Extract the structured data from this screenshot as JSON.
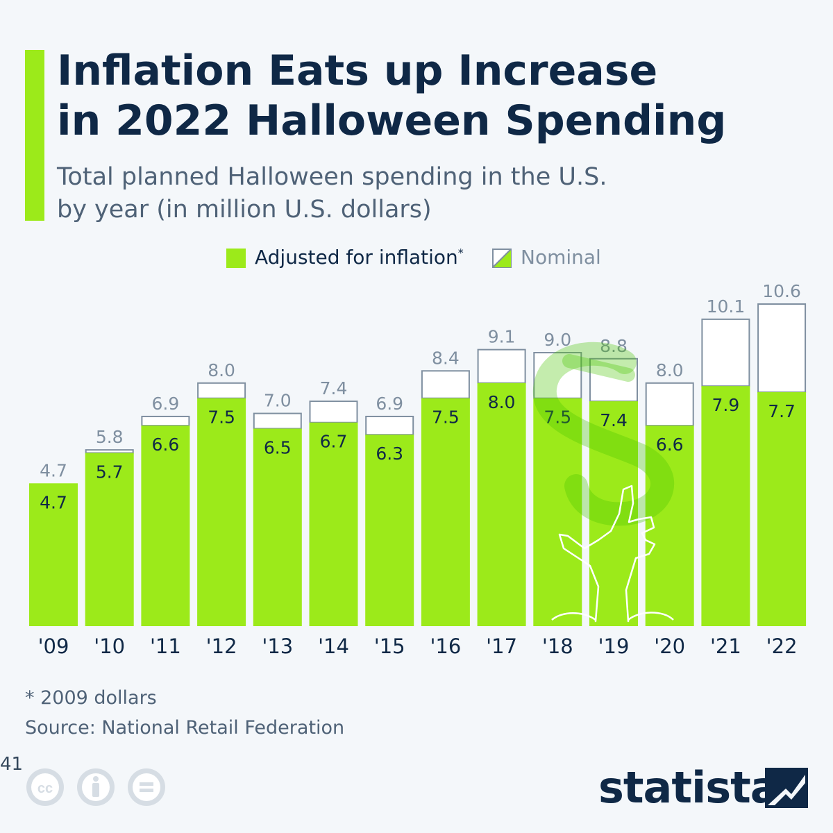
{
  "header": {
    "title_line1": "Inflation Eats up Increase",
    "title_line2": "in 2022 Halloween Spending",
    "subtitle_line1": "Total planned Halloween spending in the U.S.",
    "subtitle_line2": "by year (in million U.S. dollars)"
  },
  "legend": {
    "adjusted_label": "Adjusted for inflation",
    "adjusted_mark": "*",
    "nominal_label": "Nominal"
  },
  "chart_data": {
    "type": "bar",
    "title": "Inflation Eats up Increase in 2022 Halloween Spending",
    "subtitle": "Total planned Halloween spending in the U.S. by year (in million U.S. dollars)",
    "categories": [
      "'09",
      "'10",
      "'11",
      "'12",
      "'13",
      "'14",
      "'15",
      "'16",
      "'17",
      "'18",
      "'19",
      "'20",
      "'21",
      "'22"
    ],
    "series": [
      {
        "name": "Adjusted for inflation*",
        "values": [
          4.7,
          5.7,
          6.6,
          7.5,
          6.5,
          6.7,
          6.3,
          7.5,
          8.0,
          7.5,
          7.4,
          6.6,
          7.9,
          7.7
        ]
      },
      {
        "name": "Nominal",
        "values": [
          4.7,
          5.8,
          6.9,
          8.0,
          7.0,
          7.4,
          6.9,
          8.4,
          9.1,
          9.0,
          8.8,
          8.0,
          10.1,
          10.6
        ]
      }
    ],
    "ylim": [
      0,
      10.6
    ],
    "grid": false,
    "legend_position": "top"
  },
  "footer": {
    "footnote": "* 2009 dollars",
    "source": "Source: National Retail Federation",
    "stray_number": "41",
    "brand": "statista"
  },
  "colors": {
    "accent": "#9cea1a",
    "title": "#0f2846",
    "nominal_outline": "#7f8fa0",
    "background": "#f4f7fa"
  }
}
